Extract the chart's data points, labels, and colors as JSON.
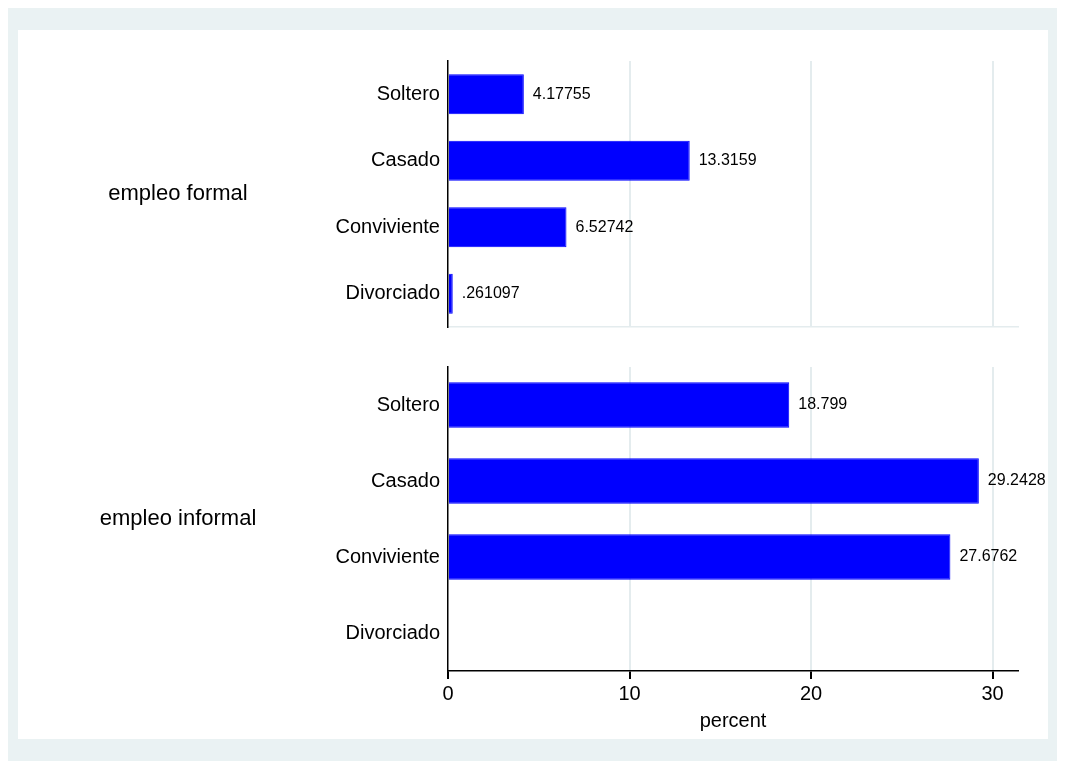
{
  "chart_data": [
    {
      "type": "bar",
      "orientation": "horizontal",
      "ylabel": "empleo formal",
      "categories": [
        "Soltero",
        "Casado",
        "Conviviente",
        "Divorciado"
      ],
      "values": [
        4.17755,
        13.3159,
        6.52742,
        0.261097
      ],
      "value_labels": [
        "4.17755",
        "13.3159",
        "6.52742",
        ".261097"
      ],
      "color": "#0000ff",
      "xlim": [
        0,
        31.4
      ],
      "xticks": [
        0,
        10,
        20,
        30
      ],
      "grid": "x",
      "tick_labels": "y"
    },
    {
      "type": "bar",
      "orientation": "horizontal",
      "ylabel": "empleo informal",
      "xlabel": "percent",
      "categories": [
        "Soltero",
        "Casado",
        "Conviviente",
        "Divorciado"
      ],
      "values": [
        18.799,
        29.2428,
        27.6762,
        null
      ],
      "value_labels": [
        "18.799",
        "29.2428",
        "27.6762",
        null
      ],
      "color": "#0000ff",
      "xlim": [
        0,
        31.4
      ],
      "xticks": [
        0,
        10,
        20,
        30
      ],
      "grid": "x"
    }
  ]
}
